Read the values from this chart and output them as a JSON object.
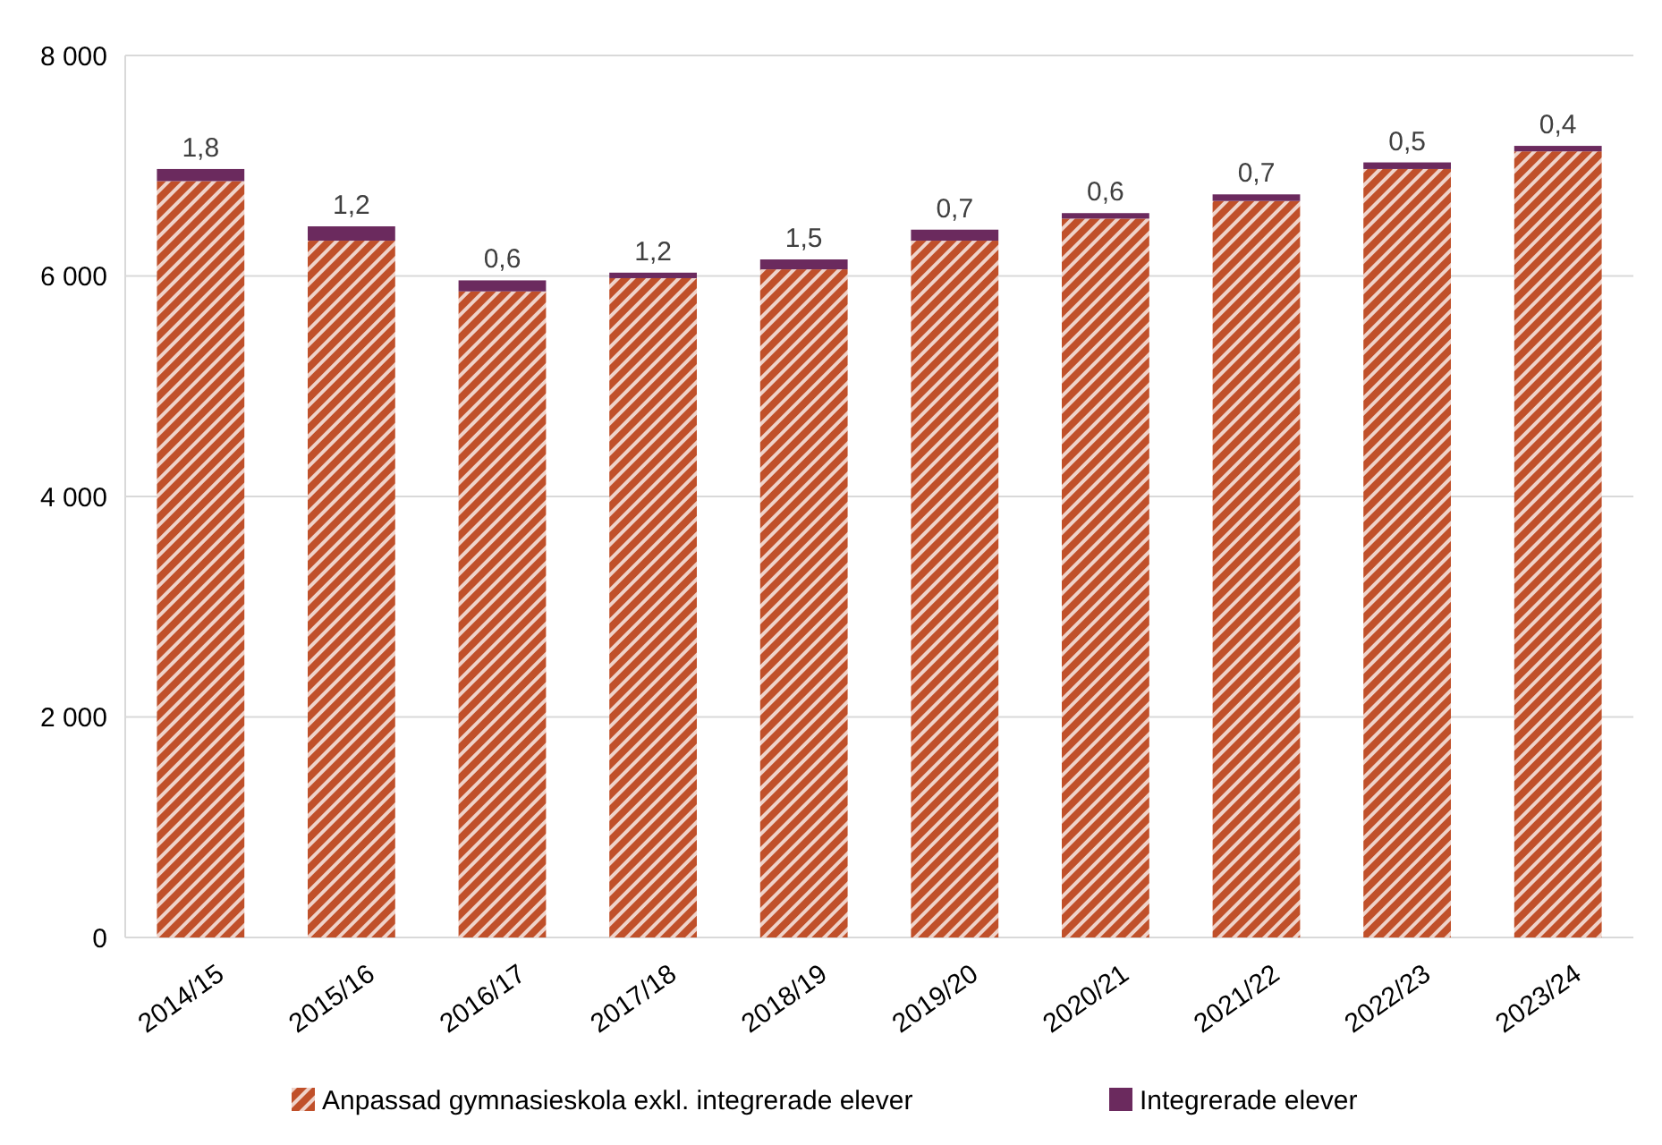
{
  "chart_data": {
    "type": "bar",
    "stacked": true,
    "categories": [
      "2014/15",
      "2015/16",
      "2016/17",
      "2017/18",
      "2018/19",
      "2019/20",
      "2020/21",
      "2021/22",
      "2022/23",
      "2023/24"
    ],
    "series": [
      {
        "name": "Anpassad gymnasieskola exkl. integrerade elever",
        "color": "#c0502a",
        "values": [
          6860,
          6320,
          5860,
          5980,
          6060,
          6320,
          6520,
          6680,
          6970,
          7130
        ]
      },
      {
        "name": "Integrerade elever",
        "color": "#6b2a5e",
        "values": [
          110,
          130,
          100,
          50,
          90,
          100,
          50,
          60,
          60,
          50
        ]
      }
    ],
    "annotations": [
      {
        "text": "1,8",
        "x": "2014/15",
        "y": 6970
      },
      {
        "text": "1,2",
        "x": "2015/16",
        "y": 6450
      },
      {
        "text": "0,6",
        "x": "2016/17",
        "y": 5960
      },
      {
        "text": "1,2",
        "x": "2017/18",
        "y": 6030
      },
      {
        "text": "1,5",
        "x": "2018/19",
        "y": 6150
      },
      {
        "text": "0,7",
        "x": "2019/20",
        "y": 6420
      },
      {
        "text": "0,6",
        "x": "2020/21",
        "y": 6570
      },
      {
        "text": "0,7",
        "x": "2021/22",
        "y": 6740
      },
      {
        "text": "0,5",
        "x": "2022/23",
        "y": 7030
      },
      {
        "text": "0,4",
        "x": "2023/24",
        "y": 7180
      }
    ],
    "ylim": [
      0,
      8000
    ],
    "yticks": [
      {
        "value": 0,
        "label": "0"
      },
      {
        "value": 2000,
        "label": "2 000"
      },
      {
        "value": 4000,
        "label": "4 000"
      },
      {
        "value": 6000,
        "label": "6 000"
      },
      {
        "value": 8000,
        "label": "8 000"
      }
    ],
    "grid": "y",
    "legend": "bottom"
  }
}
